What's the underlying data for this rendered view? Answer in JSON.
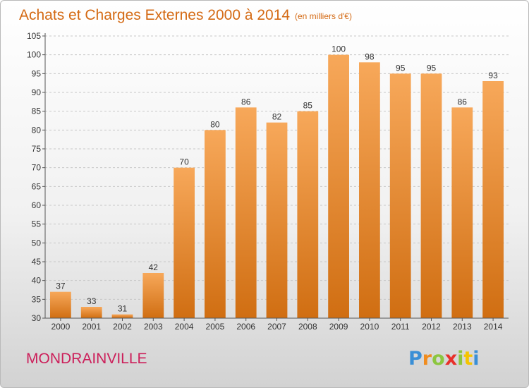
{
  "chart_data": {
    "type": "bar",
    "title": "Achats et Charges Externes 2000 à 2014",
    "subtitle": "(en milliers d'€)",
    "categories": [
      "2000",
      "2001",
      "2002",
      "2003",
      "2004",
      "2005",
      "2006",
      "2007",
      "2008",
      "2009",
      "2010",
      "2011",
      "2012",
      "2013",
      "2014"
    ],
    "values": [
      37,
      33,
      31,
      42,
      70,
      80,
      86,
      82,
      85,
      100,
      98,
      95,
      95,
      86,
      93
    ],
    "ylim": [
      30,
      105
    ],
    "yticks": [
      30,
      35,
      40,
      45,
      50,
      55,
      60,
      65,
      70,
      75,
      80,
      85,
      90,
      95,
      100,
      105
    ],
    "grid": true,
    "legend": "none",
    "bar_color_top": "#f7a85a",
    "bar_color_bottom": "#d06e12"
  },
  "commune": "MONDRAINVILLE",
  "logo": {
    "letters": [
      "P",
      "r",
      "o",
      "x",
      "i",
      "t",
      "i"
    ],
    "colors": [
      "#3a8fd6",
      "#f08c1e",
      "#8cc63f",
      "#e8302a",
      "#8cc63f",
      "#f5c400",
      "#3a8fd6"
    ]
  }
}
